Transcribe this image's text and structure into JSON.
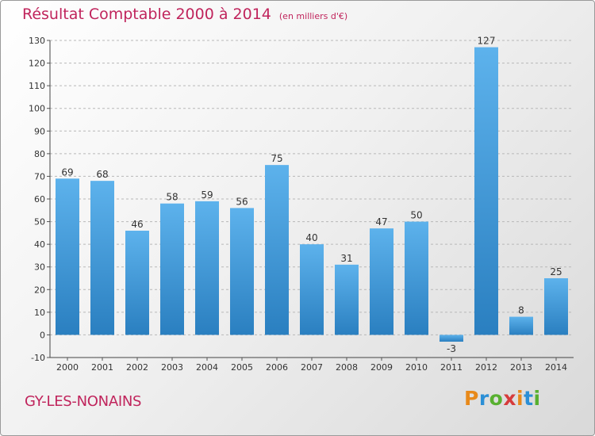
{
  "title": "Résultat Comptable 2000 à 2014",
  "unit": "(en milliers d'€)",
  "commune": "GY-LES-NONAINS",
  "brand": {
    "letters": [
      "P",
      "r",
      "o",
      "x",
      "i",
      "t",
      "i"
    ],
    "colors": [
      "#e8891a",
      "#2b8fd6",
      "#58b030",
      "#d63b3b",
      "#e8891a",
      "#2b8fd6",
      "#58b030"
    ]
  },
  "colors": {
    "bar_top": "#5db2ec",
    "bar_bottom": "#2a7fc0",
    "title": "#c0245c"
  },
  "chart_data": {
    "type": "bar",
    "categories": [
      "2000",
      "2001",
      "2002",
      "2003",
      "2004",
      "2005",
      "2006",
      "2007",
      "2008",
      "2009",
      "2010",
      "2011",
      "2012",
      "2013",
      "2014"
    ],
    "values": [
      69,
      68,
      46,
      58,
      59,
      56,
      75,
      40,
      31,
      47,
      50,
      -3,
      127,
      8,
      25
    ],
    "ylim": [
      -10,
      130
    ],
    "yticks": [
      -10,
      0,
      10,
      20,
      30,
      40,
      50,
      60,
      70,
      80,
      90,
      100,
      110,
      120,
      130
    ],
    "grid": "horizontal-dashed",
    "data_labels": true
  }
}
